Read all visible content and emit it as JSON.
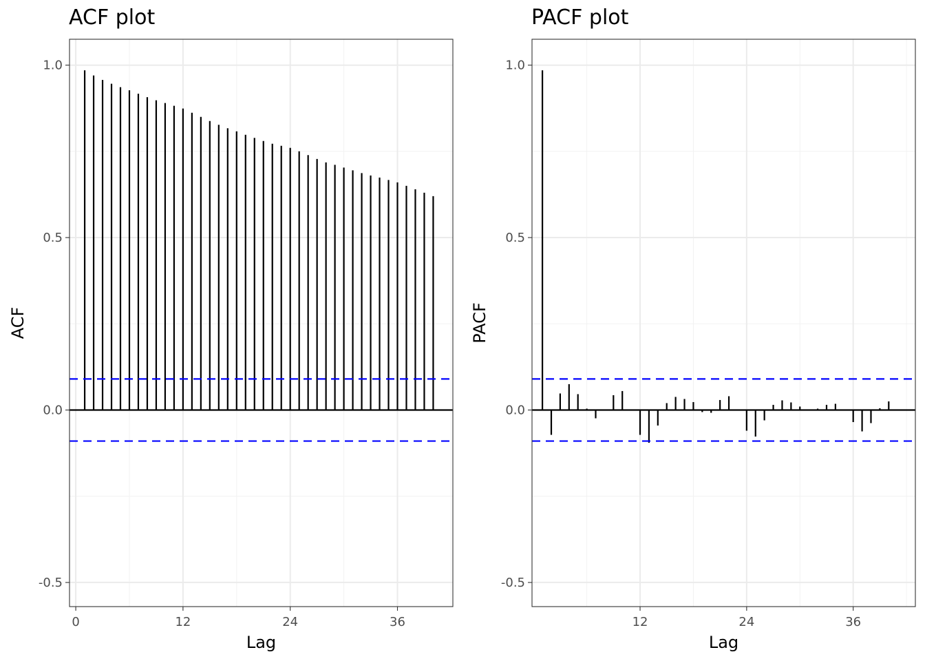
{
  "chart_data": [
    {
      "type": "bar",
      "title": "ACF plot",
      "xlabel": "Lag",
      "ylabel": "ACF",
      "xlim": [
        -0.7,
        42.2
      ],
      "ylim": [
        -0.57,
        1.075
      ],
      "x_ticks": [
        0,
        12,
        24,
        36
      ],
      "x_tick_labels": [
        "0",
        "12",
        "24",
        "36"
      ],
      "y_ticks": [
        -0.5,
        0.0,
        0.5,
        1.0
      ],
      "y_tick_labels": [
        "-0.5",
        "0.0",
        "0.5",
        "1.0"
      ],
      "grid": true,
      "conf_bound": 0.09,
      "conf_color": "#0000ff",
      "lags": [
        1,
        2,
        3,
        4,
        5,
        6,
        7,
        8,
        9,
        10,
        11,
        12,
        13,
        14,
        15,
        16,
        17,
        18,
        19,
        20,
        21,
        22,
        23,
        24,
        25,
        26,
        27,
        28,
        29,
        30,
        31,
        32,
        33,
        34,
        35,
        36,
        37,
        38,
        39,
        40
      ],
      "values": [
        0.985,
        0.97,
        0.957,
        0.946,
        0.936,
        0.927,
        0.917,
        0.907,
        0.898,
        0.89,
        0.882,
        0.874,
        0.862,
        0.85,
        0.838,
        0.827,
        0.817,
        0.808,
        0.798,
        0.789,
        0.78,
        0.772,
        0.766,
        0.76,
        0.75,
        0.739,
        0.728,
        0.718,
        0.711,
        0.703,
        0.695,
        0.687,
        0.68,
        0.674,
        0.667,
        0.66,
        0.65,
        0.64,
        0.63,
        0.62
      ]
    },
    {
      "type": "bar",
      "title": "PACF plot",
      "xlabel": "Lag",
      "ylabel": "PACF",
      "xlim": [
        -0.17,
        43.0
      ],
      "ylim": [
        -0.57,
        1.075
      ],
      "x_ticks": [
        12,
        24,
        36
      ],
      "x_tick_labels": [
        "12",
        "24",
        "36"
      ],
      "y_ticks": [
        -0.5,
        0.0,
        0.5,
        1.0
      ],
      "y_tick_labels": [
        "-0.5",
        "0.0",
        "0.5",
        "1.0"
      ],
      "grid": true,
      "conf_bound": 0.09,
      "conf_color": "#0000ff",
      "lags": [
        1,
        2,
        3,
        4,
        5,
        6,
        7,
        8,
        9,
        10,
        11,
        12,
        13,
        14,
        15,
        16,
        17,
        18,
        19,
        20,
        21,
        22,
        23,
        24,
        25,
        26,
        27,
        28,
        29,
        30,
        31,
        32,
        33,
        34,
        35,
        36,
        37,
        38,
        39,
        40
      ],
      "values": [
        0.985,
        -0.072,
        0.048,
        0.075,
        0.046,
        0.004,
        -0.024,
        0.0,
        0.043,
        0.055,
        0.0,
        -0.072,
        -0.095,
        -0.045,
        0.02,
        0.038,
        0.032,
        0.023,
        -0.006,
        -0.008,
        0.029,
        0.04,
        0.0,
        -0.06,
        -0.077,
        -0.03,
        0.015,
        0.028,
        0.022,
        0.01,
        0.0,
        0.004,
        0.015,
        0.018,
        0.0,
        -0.035,
        -0.062,
        -0.038,
        0.005,
        0.025
      ]
    }
  ]
}
